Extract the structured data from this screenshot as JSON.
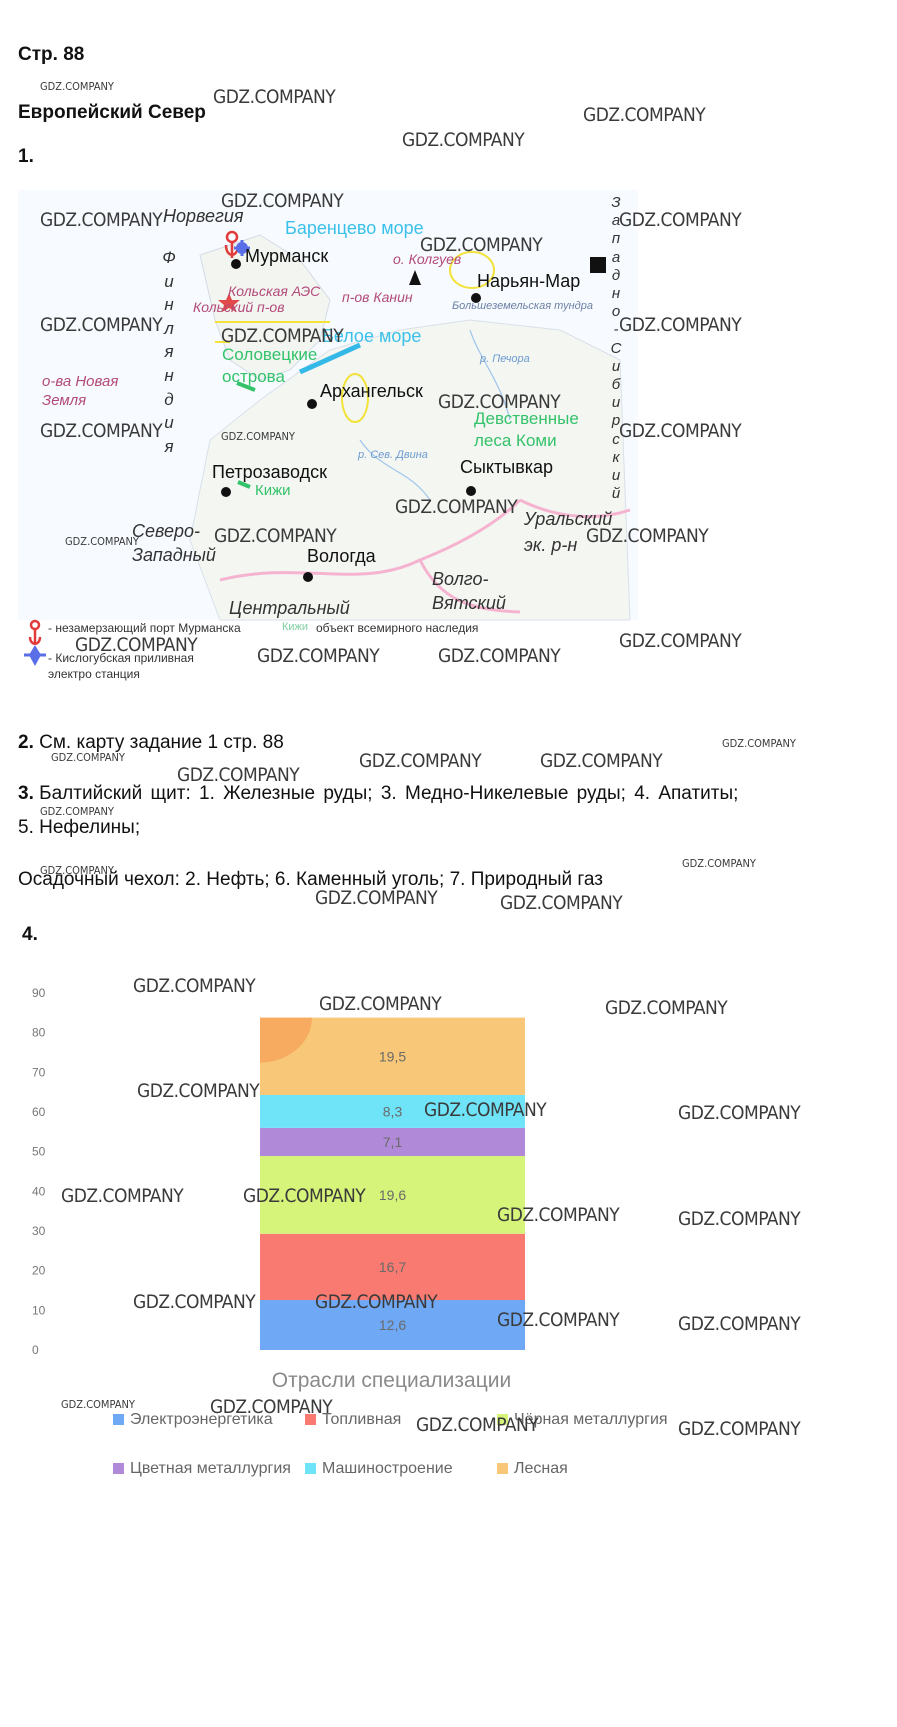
{
  "page_label": "Стр. 88",
  "section_title": "Европейский Север",
  "task1_number": "1.",
  "map": {
    "labels": {
      "norway": "Норвегия",
      "finland": [
        "Ф",
        "и",
        "н",
        "л",
        "я",
        "н",
        "д",
        "и",
        "я"
      ],
      "barents": "Баренцево море",
      "murmansk": "Мурманск",
      "kolguev": "о. Колгуев",
      "naryan_mar": "Нарьян-Мар",
      "kola_aes": "Кольская АЭС",
      "kola_pen": "Кольский п-ов",
      "kanin": "п-ов Канин",
      "bolshezem": "Большеземельская тундра",
      "white_sea": "Белое море",
      "solovki": "Соловецкие",
      "solovki2": "острова",
      "novaya_zemlya": "о-ва Новая",
      "novaya_zemlya2": "Земля",
      "arkhangelsk": "Архангельск",
      "pechora": "р. Печора",
      "virgin1": "Девственные",
      "virgin2": "леса Коми",
      "petrozavodsk": "Петрозаводск",
      "kizhi": "Кижи",
      "dvina": "р. Сев. Двина",
      "syktyvkar": "Сыктывкар",
      "north_west1": "Северо-",
      "north_west2": "Западный",
      "vologda": "Вологда",
      "ural1": "Уральский",
      "ural2": "эк. р-н",
      "volgo1": "Волго-",
      "volgo2": "Вятский",
      "central": "Центральный",
      "west_sib": [
        "З",
        "а",
        "п",
        "а",
        "д",
        "н",
        "о",
        "-",
        "С",
        "и",
        "б",
        "и",
        "р",
        "с",
        "к",
        "и",
        "й"
      ],
      "legend_port": "- незамерзающий порт Мурманска",
      "legend_tide": "- Кислогубская приливная",
      "legend_tide2": "электро станция",
      "legend_heritage_word": "Кижи",
      "legend_heritage": "объект всемирного наследия"
    }
  },
  "task2": {
    "number": "2.",
    "text": "См. карту задание 1 стр. 88"
  },
  "task3": {
    "number": "3.",
    "line1": "Балтийский щит: 1. Железные руды; 3. Медно-Никелевые руды; 4. Апатиты;",
    "line2": "5. Нефелины;",
    "line3": "Осадочный чехол: 2. Нефть; 6. Каменный уголь; 7. Природный газ"
  },
  "task4_number": "4.",
  "chart_data": {
    "type": "bar",
    "stacked": true,
    "title": "Отрасли специализации",
    "ylim": [
      0,
      90
    ],
    "yticks": [
      0,
      10,
      20,
      30,
      40,
      50,
      60,
      70,
      80,
      90
    ],
    "series": [
      {
        "name": "Электроэнергетика",
        "value": 12.6,
        "label": "12,6",
        "color": "#6fa8f5"
      },
      {
        "name": "Топливная",
        "value": 16.7,
        "label": "16,7",
        "color": "#f87a70"
      },
      {
        "name": "Чёрная металлургия",
        "value": 19.6,
        "label": "19,6",
        "color": "#d6f37a"
      },
      {
        "name": "Цветная металлургия",
        "value": 7.1,
        "label": "7,1",
        "color": "#b08ad8"
      },
      {
        "name": "Машиностроение",
        "value": 8.3,
        "label": "8,3",
        "color": "#6fe3f7"
      },
      {
        "name": "Лесная",
        "value": 19.5,
        "label": "19,5",
        "color": "#f8c878"
      }
    ]
  },
  "watermarks": {
    "big": "GDZ.COMPANY",
    "small": "GDZ.COMPANY"
  }
}
